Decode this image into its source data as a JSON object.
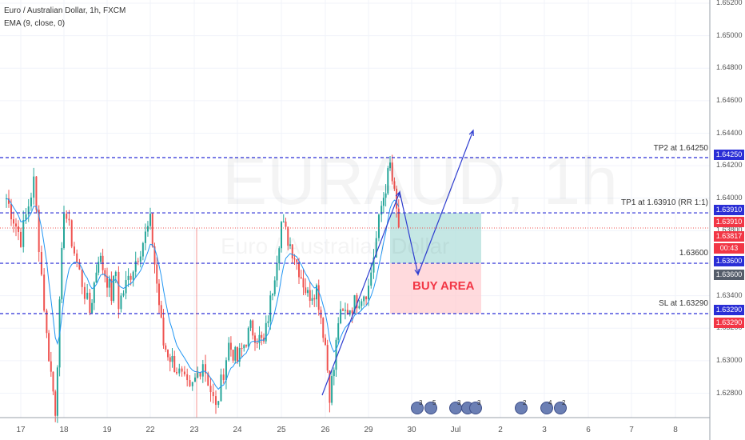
{
  "header": {
    "symbol_line": "Euro / Australian Dollar, 1h, FXCM",
    "indicator_line": "EMA (9, close, 0)"
  },
  "watermark": {
    "ticker": "EURAUD, 1h",
    "name": "Euro / Australian Dollar"
  },
  "annotations": {
    "buy_area": "BUY AREA",
    "tp2": "TP2 at 1.64250",
    "tp1": "TP1 at 1.63910 (RR 1:1)",
    "entry": "1.63600",
    "sl": "SL at 1.63290"
  },
  "price_tags": {
    "tp2": "1.64250",
    "tp1": "1.63910",
    "tp1_b": "1.63910",
    "last": "1.63817",
    "countdown": "00:43",
    "entry": "1.63600",
    "entry_b": "1.63600",
    "sl": "1.63290",
    "sl_b": "1.63290"
  },
  "y_axis_labels": [
    "1.65200",
    "1.65000",
    "1.64800",
    "1.64600",
    "1.64400",
    "1.64200",
    "1.64000",
    "1.63800",
    "1.63400",
    "1.63200",
    "1.63000",
    "1.62800"
  ],
  "x_axis_labels": [
    "17",
    "18",
    "19",
    "22",
    "23",
    "24",
    "25",
    "26",
    "29",
    "30",
    "Jul",
    "2",
    "3",
    "6",
    "7",
    "8"
  ],
  "events": [
    {
      "count": "3"
    },
    {
      "count": "5"
    },
    {
      "count": "3"
    },
    {
      "count": ""
    },
    {
      "count": "3"
    },
    {
      "count": "2"
    },
    {
      "count": "4"
    },
    {
      "count": "2"
    }
  ],
  "colors": {
    "up": "#26a69a",
    "down": "#ef5350",
    "ema": "#2196f3",
    "level_line": "#2a2ed6",
    "target_zone": "#b2dfdb",
    "stop_zone": "#ffcdd2",
    "projection": "#2f3ed0"
  },
  "chart_data": {
    "type": "candlestick",
    "symbol": "EURAUD",
    "timeframe": "1h",
    "ylim": [
      1.6265,
      1.6522
    ],
    "x": [
      "17",
      "18",
      "19",
      "22",
      "23",
      "24",
      "25",
      "26",
      "29",
      "30",
      "Jul",
      "2",
      "3",
      "6",
      "7",
      "8"
    ],
    "levels": [
      {
        "label": "TP2 at 1.64250",
        "value": 1.6425
      },
      {
        "label": "TP1 at 1.63910 (RR 1:1)",
        "value": 1.6391
      },
      {
        "label": "1.63600",
        "value": 1.636
      },
      {
        "label": "SL at 1.63290",
        "value": 1.6329
      }
    ],
    "last_price": 1.63817,
    "path_close": [
      {
        "x": 16.8,
        "y": 1.64
      },
      {
        "x": 17.0,
        "y": 1.6375
      },
      {
        "x": 17.3,
        "y": 1.641
      },
      {
        "x": 17.6,
        "y": 1.6315
      },
      {
        "x": 17.8,
        "y": 1.627
      },
      {
        "x": 18.0,
        "y": 1.6395
      },
      {
        "x": 18.3,
        "y": 1.636
      },
      {
        "x": 18.6,
        "y": 1.633
      },
      {
        "x": 18.8,
        "y": 1.6365
      },
      {
        "x": 19.0,
        "y": 1.635
      },
      {
        "x": 19.3,
        "y": 1.634
      },
      {
        "x": 19.6,
        "y": 1.6355
      },
      {
        "x": 19.8,
        "y": 1.6335
      },
      {
        "x": 22.0,
        "y": 1.6385
      },
      {
        "x": 22.3,
        "y": 1.631
      },
      {
        "x": 22.6,
        "y": 1.6295
      },
      {
        "x": 22.9,
        "y": 1.628
      },
      {
        "x": 23.2,
        "y": 1.63
      },
      {
        "x": 23.5,
        "y": 1.627
      },
      {
        "x": 23.8,
        "y": 1.631
      },
      {
        "x": 24.0,
        "y": 1.63
      },
      {
        "x": 24.3,
        "y": 1.632
      },
      {
        "x": 24.6,
        "y": 1.631
      },
      {
        "x": 24.8,
        "y": 1.6345
      },
      {
        "x": 25.0,
        "y": 1.6385
      },
      {
        "x": 25.3,
        "y": 1.6365
      },
      {
        "x": 25.6,
        "y": 1.634
      },
      {
        "x": 25.8,
        "y": 1.6345
      },
      {
        "x": 26.0,
        "y": 1.631
      },
      {
        "x": 26.3,
        "y": 1.628
      },
      {
        "x": 26.6,
        "y": 1.6295
      },
      {
        "x": 26.9,
        "y": 1.6325
      },
      {
        "x": 29.0,
        "y": 1.6345
      },
      {
        "x": 29.3,
        "y": 1.6395
      },
      {
        "x": 29.5,
        "y": 1.642
      },
      {
        "x": 29.7,
        "y": 1.6382
      }
    ],
    "ema_period": 9
  }
}
